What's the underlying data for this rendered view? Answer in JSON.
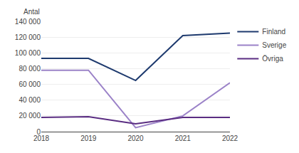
{
  "chart_data": {
    "type": "line",
    "ylabel": "Antal",
    "x": [
      2018,
      2019,
      2020,
      2021,
      2022
    ],
    "series": [
      {
        "name": "Finland",
        "color": "#1e3a6e",
        "values": [
          93000,
          93000,
          65000,
          122000,
          125000
        ]
      },
      {
        "name": "Sverige",
        "color": "#9b82c8",
        "values": [
          78000,
          78000,
          5000,
          20000,
          62000
        ]
      },
      {
        "name": "Övriga",
        "color": "#5a2d82",
        "values": [
          18000,
          19000,
          10000,
          18000,
          18000
        ]
      }
    ],
    "xlim": [
      2018,
      2022
    ],
    "xticks": [
      2018,
      2019,
      2020,
      2021,
      2022
    ],
    "ylim": [
      0,
      140000
    ],
    "yticks": [
      0,
      {
        "value": 20000,
        "label": "20 000"
      },
      {
        "value": 40000,
        "label": "40 000"
      },
      {
        "value": 60000,
        "label": "60 000"
      },
      {
        "value": 80000,
        "label": "80 000"
      },
      {
        "value": 100000,
        "label": "100 000"
      },
      {
        "value": 120000,
        "label": "120 000"
      },
      {
        "value": 140000,
        "label": "140 000"
      }
    ],
    "grid": "y",
    "legend": "right"
  }
}
